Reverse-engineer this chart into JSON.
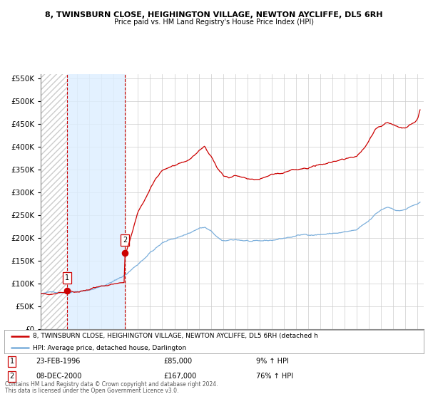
{
  "title": "8, TWINSBURN CLOSE, HEIGHINGTON VILLAGE, NEWTON AYCLIFFE, DL5 6RH",
  "subtitle": "Price paid vs. HM Land Registry's House Price Index (HPI)",
  "legend_line1": "8, TWINSBURN CLOSE, HEIGHINGTON VILLAGE, NEWTON AYCLIFFE, DL5 6RH (detached h",
  "legend_line2": "HPI: Average price, detached house, Darlington",
  "footer1": "Contains HM Land Registry data © Crown copyright and database right 2024.",
  "footer2": "This data is licensed under the Open Government Licence v3.0.",
  "transaction1_date": "23-FEB-1996",
  "transaction1_price": "£85,000",
  "transaction1_hpi": "9% ↑ HPI",
  "transaction2_date": "08-DEC-2000",
  "transaction2_price": "£167,000",
  "transaction2_hpi": "76% ↑ HPI",
  "xmin": 1994.0,
  "xmax": 2025.5,
  "ymin": 0,
  "ymax": 560000,
  "yticks": [
    0,
    50000,
    100000,
    150000,
    200000,
    250000,
    300000,
    350000,
    400000,
    450000,
    500000,
    550000
  ],
  "red_line_color": "#cc0000",
  "blue_line_color": "#7aaedb",
  "grid_color": "#cccccc",
  "background_color": "#ffffff",
  "transaction1_x": 1996.15,
  "transaction1_y": 85000,
  "transaction2_x": 2000.93,
  "transaction2_y": 167000,
  "shade_color": "#ddeeff",
  "hatch_color": "#cccccc"
}
